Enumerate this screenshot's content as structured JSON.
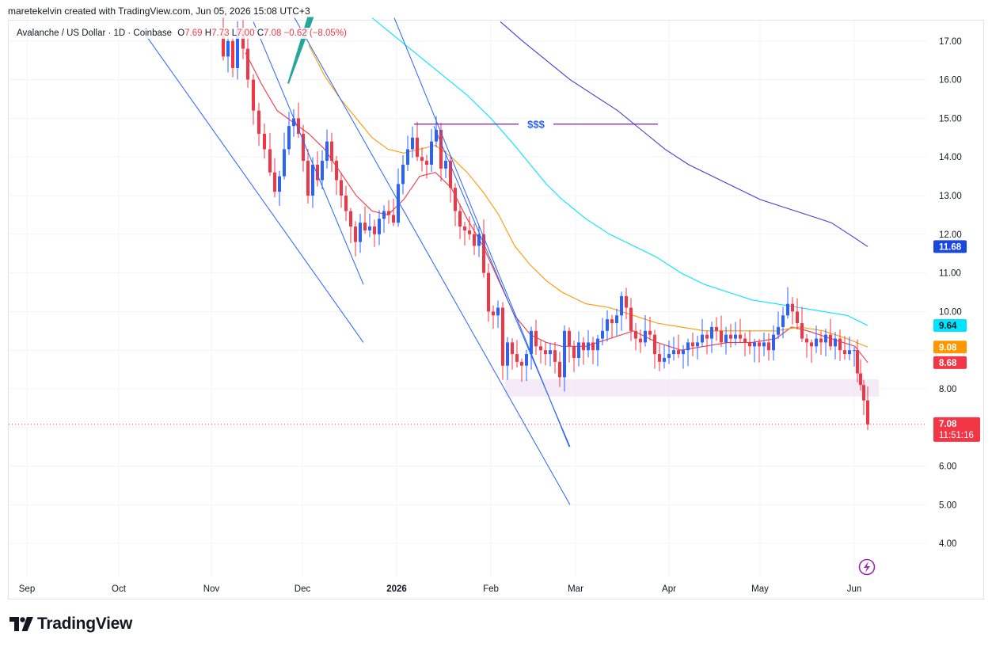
{
  "credit": "maretekelvin created with TradingView.com, Jun 05, 2026 15:08 UTC+3",
  "legend": {
    "symbol": "Avalanche / US Dollar · 1D · Coinbase",
    "o_label": "O",
    "o_value": "7.69",
    "h_label": "H",
    "h_value": "7.73",
    "l_label": "L",
    "l_value": "7.00",
    "c_label": "C",
    "c_value": "7.08",
    "change": "−0.62 (−8.05%)"
  },
  "brand": {
    "name": "TradingView"
  },
  "annotation": {
    "label": "$$$",
    "color": "#2962ff"
  },
  "colors": {
    "up": "#2962ff",
    "down": "#f23645",
    "ema_short": "#f23645",
    "ema_mid": "#ff9800",
    "ema_long": "#00e5ff",
    "ema_longest": "#3f3fd0",
    "trendline": "#2962ff",
    "zone": "#f3e5f5",
    "level_line": "#7b1fa2",
    "arrow": "#26a69a"
  },
  "chart_data": {
    "type": "candlestick",
    "symbol": "Avalanche / US Dollar",
    "interval": "1D",
    "exchange": "Coinbase",
    "x_axis": {
      "ticks": [
        "Sep",
        "Oct",
        "Nov",
        "Dec",
        "2026",
        "Feb",
        "Mar",
        "Apr",
        "May",
        "Jun"
      ]
    },
    "y_axis": {
      "range": [
        3.5,
        17.6
      ],
      "ticks": [
        "4.00",
        "5.00",
        "6.00",
        "7.00",
        "8.00",
        "9.00",
        "10.00",
        "11.00",
        "12.00",
        "13.00",
        "14.00",
        "15.00",
        "16.00",
        "17.00"
      ]
    },
    "last_price": {
      "value": "7.08",
      "countdown": "11:51:16"
    },
    "ma_badges": [
      {
        "value": "11.68",
        "y": 11.68,
        "bg": "#1848e0",
        "fg": "#ffffff"
      },
      {
        "value": "9.64",
        "y": 9.64,
        "bg": "#00e5ff",
        "fg": "#131722"
      },
      {
        "value": "9.08",
        "y": 9.08,
        "bg": "#ff9800",
        "fg": "#ffffff"
      },
      {
        "value": "8.68",
        "y": 8.68,
        "bg": "#f23645",
        "fg": "#ffffff"
      }
    ],
    "price_path": [
      [
        275,
        17.2
      ],
      [
        282,
        16.6
      ],
      [
        288,
        17.0
      ],
      [
        294,
        16.3
      ],
      [
        300,
        17.3
      ],
      [
        307,
        16.8
      ],
      [
        313,
        16.0
      ],
      [
        320,
        15.2
      ],
      [
        327,
        14.6
      ],
      [
        334,
        14.2
      ],
      [
        341,
        13.6
      ],
      [
        347,
        13.1
      ],
      [
        353,
        13.5
      ],
      [
        359,
        14.2
      ],
      [
        365,
        14.8
      ],
      [
        371,
        15.0
      ],
      [
        377,
        14.6
      ],
      [
        383,
        13.9
      ],
      [
        389,
        13.0
      ],
      [
        395,
        13.8
      ],
      [
        401,
        13.4
      ],
      [
        407,
        13.9
      ],
      [
        413,
        14.4
      ],
      [
        419,
        13.9
      ],
      [
        425,
        13.4
      ],
      [
        431,
        13.0
      ],
      [
        437,
        12.6
      ],
      [
        443,
        12.2
      ],
      [
        449,
        11.8
      ],
      [
        455,
        12.3
      ],
      [
        461,
        12.1
      ],
      [
        467,
        12.2
      ],
      [
        473,
        12.0
      ],
      [
        479,
        12.4
      ],
      [
        485,
        12.6
      ],
      [
        491,
        12.5
      ],
      [
        497,
        12.3
      ],
      [
        503,
        13.3
      ],
      [
        509,
        13.8
      ],
      [
        515,
        14.2
      ],
      [
        521,
        14.5
      ],
      [
        527,
        14.0
      ],
      [
        533,
        13.9
      ],
      [
        539,
        13.8
      ],
      [
        545,
        14.4
      ],
      [
        551,
        14.7
      ],
      [
        557,
        13.7
      ],
      [
        563,
        13.9
      ],
      [
        569,
        13.2
      ],
      [
        575,
        12.6
      ],
      [
        581,
        12.2
      ],
      [
        587,
        12.1
      ],
      [
        593,
        12.0
      ],
      [
        599,
        11.7
      ],
      [
        605,
        12.0
      ],
      [
        611,
        11.0
      ],
      [
        617,
        10.0
      ],
      [
        623,
        9.9
      ],
      [
        629,
        10.1
      ],
      [
        635,
        8.6
      ],
      [
        641,
        9.2
      ],
      [
        647,
        8.9
      ],
      [
        653,
        8.7
      ],
      [
        659,
        8.6
      ],
      [
        665,
        8.9
      ],
      [
        671,
        9.5
      ],
      [
        677,
        9.1
      ],
      [
        683,
        9.0
      ],
      [
        689,
        8.9
      ],
      [
        695,
        9.0
      ],
      [
        701,
        8.7
      ],
      [
        707,
        8.3
      ],
      [
        713,
        9.5
      ],
      [
        719,
        9.1
      ],
      [
        725,
        8.8
      ],
      [
        731,
        9.2
      ],
      [
        737,
        9.0
      ],
      [
        743,
        9.2
      ],
      [
        749,
        9.0
      ],
      [
        755,
        9.3
      ],
      [
        761,
        9.5
      ],
      [
        767,
        9.8
      ],
      [
        773,
        9.7
      ],
      [
        779,
        9.9
      ],
      [
        785,
        10.4
      ],
      [
        791,
        10.1
      ],
      [
        797,
        9.5
      ],
      [
        803,
        9.3
      ],
      [
        809,
        9.2
      ],
      [
        815,
        9.5
      ],
      [
        821,
        9.4
      ],
      [
        827,
        8.9
      ],
      [
        833,
        8.7
      ],
      [
        839,
        8.8
      ],
      [
        845,
        8.9
      ],
      [
        851,
        9.0
      ],
      [
        857,
        8.9
      ],
      [
        863,
        9.0
      ],
      [
        869,
        9.2
      ],
      [
        875,
        9.1
      ],
      [
        881,
        9.2
      ],
      [
        887,
        9.4
      ],
      [
        893,
        9.3
      ],
      [
        899,
        9.6
      ],
      [
        905,
        9.5
      ],
      [
        911,
        9.2
      ],
      [
        917,
        9.4
      ],
      [
        923,
        9.3
      ],
      [
        929,
        9.4
      ],
      [
        935,
        9.3
      ],
      [
        941,
        9.2
      ],
      [
        947,
        9.1
      ],
      [
        953,
        9.2
      ],
      [
        959,
        9.1
      ],
      [
        965,
        9.2
      ],
      [
        971,
        9.0
      ],
      [
        977,
        9.4
      ],
      [
        983,
        9.6
      ],
      [
        989,
        9.9
      ],
      [
        995,
        10.2
      ],
      [
        1001,
        10.0
      ],
      [
        1007,
        9.7
      ],
      [
        1013,
        9.3
      ],
      [
        1019,
        9.2
      ],
      [
        1025,
        9.1
      ],
      [
        1031,
        9.3
      ],
      [
        1037,
        9.2
      ],
      [
        1043,
        9.4
      ],
      [
        1049,
        9.1
      ],
      [
        1055,
        9.3
      ],
      [
        1061,
        9.0
      ],
      [
        1067,
        8.9
      ],
      [
        1073,
        9.0
      ],
      [
        1079,
        9.0
      ],
      [
        1083,
        8.4
      ],
      [
        1087,
        8.1
      ],
      [
        1091,
        7.7
      ],
      [
        1096,
        7.08
      ]
    ],
    "moving_averages": [
      {
        "name": "ema_short",
        "color": "#f23645",
        "points": [
          [
            310,
            16.7
          ],
          [
            330,
            15.9
          ],
          [
            350,
            15.2
          ],
          [
            370,
            14.9
          ],
          [
            390,
            14.6
          ],
          [
            410,
            14.2
          ],
          [
            430,
            13.6
          ],
          [
            450,
            13.0
          ],
          [
            470,
            12.6
          ],
          [
            490,
            12.5
          ],
          [
            510,
            12.9
          ],
          [
            530,
            13.5
          ],
          [
            550,
            13.6
          ],
          [
            570,
            13.2
          ],
          [
            590,
            12.4
          ],
          [
            610,
            11.7
          ],
          [
            630,
            10.8
          ],
          [
            650,
            9.9
          ],
          [
            670,
            9.4
          ],
          [
            690,
            9.2
          ],
          [
            710,
            9.1
          ],
          [
            740,
            9.1
          ],
          [
            770,
            9.3
          ],
          [
            800,
            9.5
          ],
          [
            830,
            9.2
          ],
          [
            860,
            9.0
          ],
          [
            890,
            9.1
          ],
          [
            920,
            9.2
          ],
          [
            950,
            9.2
          ],
          [
            980,
            9.3
          ],
          [
            1000,
            9.6
          ],
          [
            1020,
            9.5
          ],
          [
            1050,
            9.3
          ],
          [
            1080,
            9.1
          ],
          [
            1096,
            8.68
          ]
        ]
      },
      {
        "name": "ema_mid",
        "color": "#ff9800",
        "points": [
          [
            390,
            16.9
          ],
          [
            410,
            16.1
          ],
          [
            430,
            15.5
          ],
          [
            450,
            15.0
          ],
          [
            470,
            14.5
          ],
          [
            490,
            14.2
          ],
          [
            510,
            14.1
          ],
          [
            530,
            14.2
          ],
          [
            550,
            14.3
          ],
          [
            570,
            14.0
          ],
          [
            590,
            13.6
          ],
          [
            610,
            13.1
          ],
          [
            630,
            12.5
          ],
          [
            650,
            11.7
          ],
          [
            670,
            11.2
          ],
          [
            690,
            10.8
          ],
          [
            710,
            10.5
          ],
          [
            740,
            10.2
          ],
          [
            770,
            10.1
          ],
          [
            800,
            9.9
          ],
          [
            830,
            9.7
          ],
          [
            860,
            9.6
          ],
          [
            890,
            9.5
          ],
          [
            920,
            9.5
          ],
          [
            950,
            9.5
          ],
          [
            980,
            9.5
          ],
          [
            1010,
            9.6
          ],
          [
            1040,
            9.5
          ],
          [
            1070,
            9.3
          ],
          [
            1096,
            9.08
          ]
        ]
      },
      {
        "name": "ema_long",
        "color": "#00e5ff",
        "points": [
          [
            470,
            17.6
          ],
          [
            500,
            17.1
          ],
          [
            530,
            16.6
          ],
          [
            560,
            16.1
          ],
          [
            590,
            15.6
          ],
          [
            620,
            15.0
          ],
          [
            650,
            14.3
          ],
          [
            670,
            13.8
          ],
          [
            690,
            13.3
          ],
          [
            710,
            12.9
          ],
          [
            740,
            12.4
          ],
          [
            770,
            12.0
          ],
          [
            800,
            11.7
          ],
          [
            830,
            11.4
          ],
          [
            860,
            11.0
          ],
          [
            890,
            10.7
          ],
          [
            920,
            10.5
          ],
          [
            950,
            10.3
          ],
          [
            980,
            10.2
          ],
          [
            1010,
            10.1
          ],
          [
            1040,
            10.0
          ],
          [
            1070,
            9.9
          ],
          [
            1096,
            9.64
          ]
        ]
      },
      {
        "name": "ema_longest",
        "color": "#3f3fd0",
        "points": [
          [
            632,
            17.5
          ],
          [
            660,
            17.0
          ],
          [
            690,
            16.5
          ],
          [
            720,
            16.0
          ],
          [
            750,
            15.6
          ],
          [
            780,
            15.2
          ],
          [
            810,
            14.7
          ],
          [
            840,
            14.2
          ],
          [
            870,
            13.8
          ],
          [
            900,
            13.5
          ],
          [
            930,
            13.2
          ],
          [
            960,
            12.9
          ],
          [
            990,
            12.7
          ],
          [
            1020,
            12.5
          ],
          [
            1050,
            12.3
          ],
          [
            1080,
            11.9
          ],
          [
            1096,
            11.68
          ]
        ]
      }
    ],
    "trendlines": [
      {
        "x1": 179,
        "y1": 17.3,
        "x2": 459,
        "y2": 9.2
      },
      {
        "x1": 320,
        "y1": 17.5,
        "x2": 459,
        "y2": 10.7
      },
      {
        "x1": 498,
        "y1": 17.6,
        "x2": 719,
        "y2": 6.5
      },
      {
        "x1": 372,
        "y1": 17.6,
        "x2": 720,
        "y2": 5.0
      },
      {
        "x1": 548,
        "y1": 14.8,
        "x2": 720,
        "y2": 6.5
      }
    ],
    "level_line": {
      "x1": 523,
      "x2": 831,
      "y": 14.85
    },
    "zone": {
      "x1": 638,
      "x2": 1110,
      "y_top": 8.25,
      "y_bottom": 7.8
    },
    "arrow": {
      "x1": 364,
      "y1": 15.9,
      "x2": 395,
      "y2": 17.6
    }
  }
}
